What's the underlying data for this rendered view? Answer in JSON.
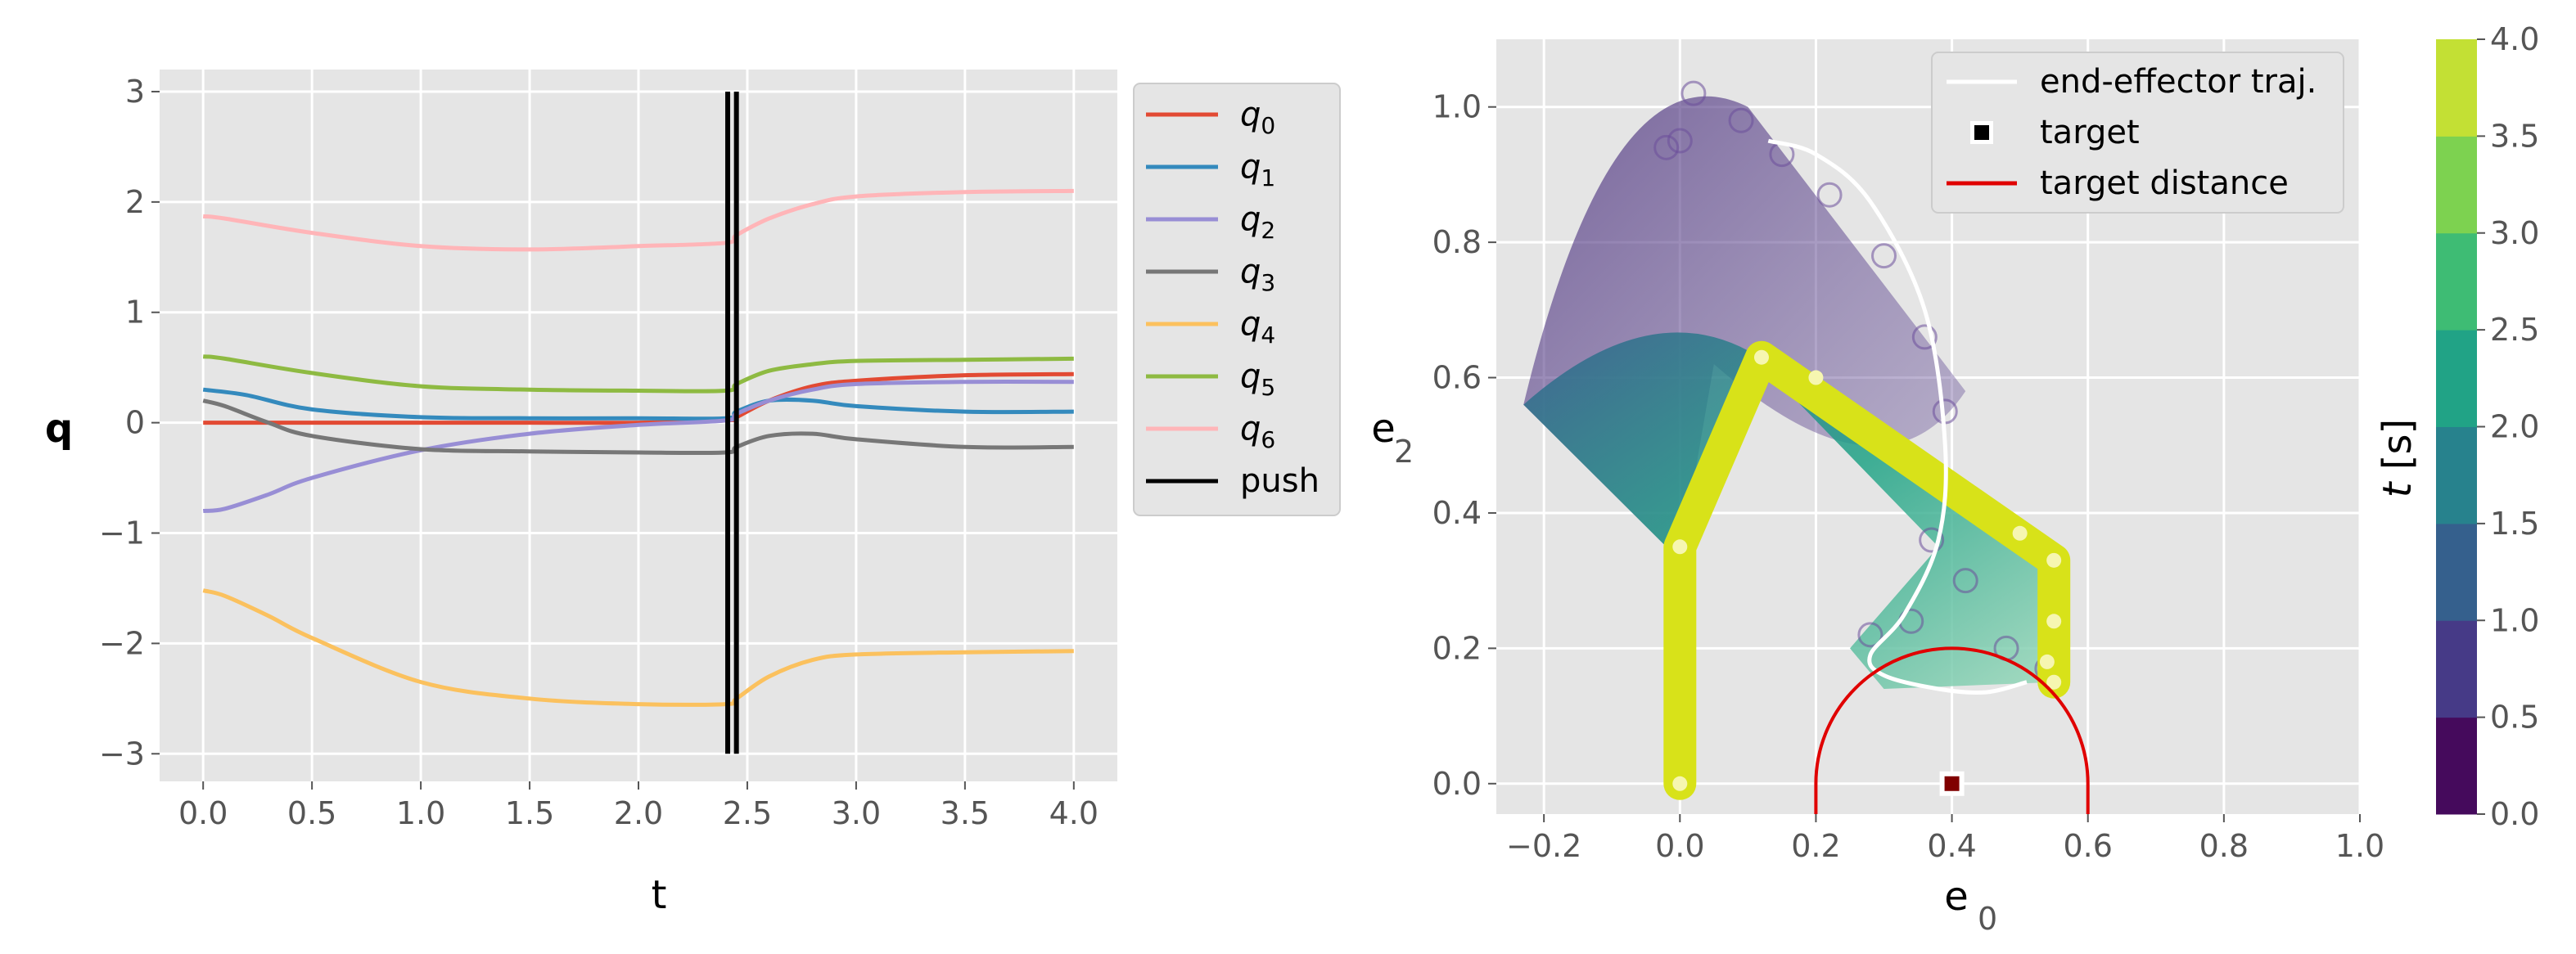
{
  "chart_data": [
    {
      "type": "line",
      "title": "",
      "xlabel": "t",
      "ylabel": "q",
      "xlim": [
        -0.2,
        4.2
      ],
      "ylim": [
        -3.25,
        3.2
      ],
      "xticks": [
        "0.0",
        "0.5",
        "1.0",
        "1.5",
        "2.0",
        "2.5",
        "3.0",
        "3.5",
        "4.0"
      ],
      "yticks": [
        "3",
        "2",
        "1",
        "0",
        "−1",
        "−2",
        "−3"
      ],
      "series": [
        {
          "name": "q",
          "sub": "0",
          "color": "#e24a33",
          "x": [
            0,
            0.5,
            1,
            1.5,
            2,
            2.4,
            2.45,
            2.6,
            2.8,
            3,
            3.5,
            4
          ],
          "values": [
            0,
            0,
            0,
            0,
            0,
            0.02,
            0.05,
            0.2,
            0.33,
            0.38,
            0.43,
            0.44
          ]
        },
        {
          "name": "q",
          "sub": "1",
          "color": "#348abd",
          "x": [
            0,
            0.2,
            0.5,
            1,
            1.5,
            2,
            2.4,
            2.45,
            2.6,
            2.8,
            3,
            3.5,
            4
          ],
          "values": [
            0.3,
            0.25,
            0.12,
            0.05,
            0.04,
            0.04,
            0.04,
            0.1,
            0.2,
            0.2,
            0.15,
            0.1,
            0.1
          ]
        },
        {
          "name": "q",
          "sub": "2",
          "color": "#988ed5",
          "x": [
            0,
            0.1,
            0.3,
            0.5,
            1,
            1.5,
            2,
            2.4,
            2.45,
            2.6,
            2.8,
            3,
            3.5,
            4
          ],
          "values": [
            -0.8,
            -0.78,
            -0.65,
            -0.5,
            -0.25,
            -0.1,
            -0.02,
            0.02,
            0.08,
            0.2,
            0.3,
            0.35,
            0.37,
            0.37
          ]
        },
        {
          "name": "q",
          "sub": "3",
          "color": "#777777",
          "x": [
            0,
            0.1,
            0.3,
            0.5,
            1,
            1.5,
            2,
            2.4,
            2.45,
            2.6,
            2.8,
            3,
            3.5,
            4
          ],
          "values": [
            0.2,
            0.15,
            0,
            -0.12,
            -0.24,
            -0.26,
            -0.27,
            -0.27,
            -0.22,
            -0.12,
            -0.1,
            -0.15,
            -0.22,
            -0.22
          ]
        },
        {
          "name": "q",
          "sub": "4",
          "color": "#fbc15e",
          "x": [
            0,
            0.1,
            0.3,
            0.5,
            1,
            1.5,
            2,
            2.4,
            2.45,
            2.6,
            2.8,
            3,
            3.5,
            4
          ],
          "values": [
            -1.52,
            -1.57,
            -1.75,
            -1.95,
            -2.35,
            -2.5,
            -2.55,
            -2.55,
            -2.5,
            -2.3,
            -2.15,
            -2.1,
            -2.08,
            -2.07
          ]
        },
        {
          "name": "q",
          "sub": "5",
          "color": "#8eba42",
          "x": [
            0,
            0.1,
            0.5,
            1,
            1.5,
            2,
            2.4,
            2.45,
            2.6,
            2.8,
            3,
            3.5,
            4
          ],
          "values": [
            0.6,
            0.58,
            0.45,
            0.33,
            0.3,
            0.29,
            0.29,
            0.35,
            0.47,
            0.53,
            0.56,
            0.57,
            0.58
          ]
        },
        {
          "name": "q",
          "sub": "6",
          "color": "#ffb5b8",
          "x": [
            0,
            0.1,
            0.5,
            1,
            1.5,
            2,
            2.4,
            2.45,
            2.6,
            2.8,
            3,
            3.5,
            4
          ],
          "values": [
            1.87,
            1.85,
            1.72,
            1.6,
            1.57,
            1.6,
            1.63,
            1.7,
            1.85,
            1.98,
            2.05,
            2.09,
            2.1
          ]
        }
      ],
      "push": {
        "name": "push",
        "color": "#000000",
        "x": [
          2.41,
          2.45
        ],
        "y_range": [
          -3,
          3
        ]
      }
    },
    {
      "type": "scatter",
      "title": "",
      "xlabel": "e",
      "xlabel_sub": "0",
      "ylabel": "e",
      "ylabel_sub": "2",
      "xlim": [
        -0.27,
        1.0
      ],
      "ylim": [
        -0.045,
        1.1
      ],
      "xticks": [
        "−0.2",
        "0.0",
        "0.2",
        "0.4",
        "0.6",
        "0.8",
        "1.0"
      ],
      "yticks": [
        "1.0",
        "0.8",
        "0.6",
        "0.4",
        "0.2",
        "0.0"
      ],
      "legend": [
        {
          "label": "end-effector traj.",
          "kind": "line",
          "color": "#ffffff"
        },
        {
          "label": "target",
          "kind": "square",
          "color": "#000000"
        },
        {
          "label": "target distance",
          "kind": "line",
          "color": "#e00000"
        }
      ],
      "arm_final": {
        "points_x": [
          0,
          0,
          0.12,
          0.55,
          0.55
        ],
        "points_y": [
          0,
          0.35,
          0.63,
          0.33,
          0.15
        ],
        "color": "#d8e219"
      },
      "arm_initial": {
        "points_x": [
          0,
          -0.22,
          0.03
        ],
        "points_y": [
          0.33,
          0.56,
          1.02
        ],
        "color": "#481a6c"
      },
      "trajectory": {
        "x": [
          0.13,
          0.2,
          0.28,
          0.36,
          0.39,
          0.38,
          0.33,
          0.28,
          0.3,
          0.38,
          0.45,
          0.51
        ],
        "y": [
          0.95,
          0.93,
          0.86,
          0.7,
          0.5,
          0.36,
          0.25,
          0.19,
          0.16,
          0.14,
          0.135,
          0.15
        ]
      },
      "target": {
        "x": 0.4,
        "y": 0.0,
        "color": "#800000"
      },
      "target_distance": {
        "center": [
          0.4,
          0.0
        ],
        "radius": 0.2,
        "color": "#e00000"
      },
      "colorbar": {
        "label": "t",
        "unit": "[s]",
        "ticks": [
          "4.0",
          "3.5",
          "3.0",
          "2.5",
          "2.0",
          "1.5",
          "1.0",
          "0.5",
          "0.0"
        ],
        "colors": [
          "#450a5c",
          "#463a87",
          "#35608d",
          "#27828d",
          "#21a386",
          "#3ebc74",
          "#7dd250",
          "#c3e034"
        ]
      }
    }
  ]
}
